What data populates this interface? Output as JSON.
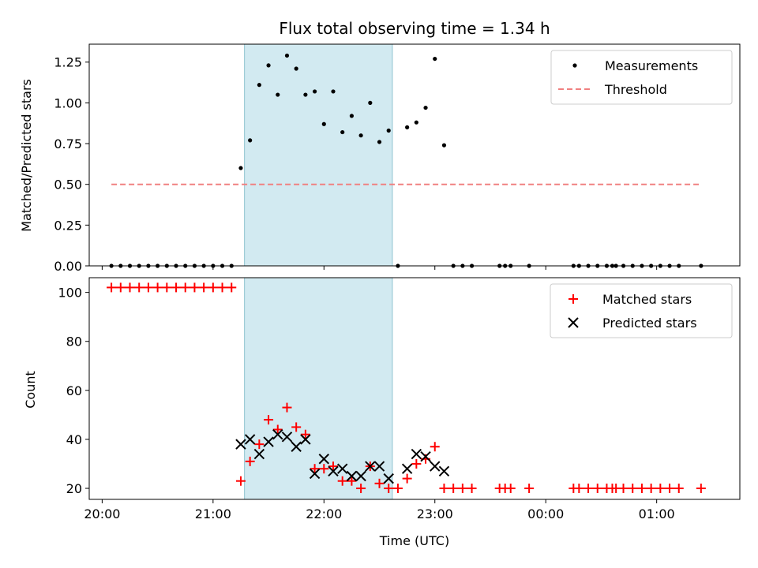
{
  "chart_data": [
    {
      "type": "scatter",
      "title": "Flux total observing time = 1.34 h",
      "xlabel": "",
      "ylabel": "Matched/Predicted stars",
      "ylim": [
        0,
        1.36
      ],
      "xlim": [
        "19:53",
        "01:45"
      ],
      "yticks": [
        "0.00",
        "0.25",
        "0.50",
        "0.75",
        "1.00",
        "1.25"
      ],
      "grid": false,
      "legend_position": "top-right",
      "shaded_region": {
        "start": "21:17",
        "end": "22:37"
      },
      "series": [
        {
          "name": "Measurements",
          "marker": "dot",
          "color": "#000000",
          "points": [
            [
              "20:05",
              0
            ],
            [
              "20:10",
              0
            ],
            [
              "20:15",
              0
            ],
            [
              "20:20",
              0
            ],
            [
              "20:25",
              0
            ],
            [
              "20:30",
              0
            ],
            [
              "20:35",
              0
            ],
            [
              "20:40",
              0
            ],
            [
              "20:45",
              0
            ],
            [
              "20:50",
              0
            ],
            [
              "20:55",
              0
            ],
            [
              "21:00",
              0
            ],
            [
              "21:05",
              0
            ],
            [
              "21:10",
              0
            ],
            [
              "21:15",
              0.6
            ],
            [
              "21:20",
              0.77
            ],
            [
              "21:25",
              1.11
            ],
            [
              "21:30",
              1.23
            ],
            [
              "21:35",
              1.05
            ],
            [
              "21:40",
              1.29
            ],
            [
              "21:45",
              1.21
            ],
            [
              "21:50",
              1.05
            ],
            [
              "21:55",
              1.07
            ],
            [
              "22:00",
              0.87
            ],
            [
              "22:05",
              1.07
            ],
            [
              "22:10",
              0.82
            ],
            [
              "22:15",
              0.92
            ],
            [
              "22:20",
              0.8
            ],
            [
              "22:25",
              1.0
            ],
            [
              "22:30",
              0.76
            ],
            [
              "22:35",
              0.83
            ],
            [
              "22:40",
              0
            ],
            [
              "22:45",
              0.85
            ],
            [
              "22:50",
              0.88
            ],
            [
              "22:55",
              0.97
            ],
            [
              "23:00",
              1.27
            ],
            [
              "23:05",
              0.74
            ],
            [
              "23:10",
              0
            ],
            [
              "23:15",
              0
            ],
            [
              "23:20",
              0
            ],
            [
              "23:35",
              0
            ],
            [
              "23:38",
              0
            ],
            [
              "23:41",
              0
            ],
            [
              "23:51",
              0
            ],
            [
              "00:15",
              0
            ],
            [
              "00:18",
              0
            ],
            [
              "00:23",
              0
            ],
            [
              "00:28",
              0
            ],
            [
              "00:33",
              0
            ],
            [
              "00:36",
              0
            ],
            [
              "00:38",
              0
            ],
            [
              "00:42",
              0
            ],
            [
              "00:47",
              0
            ],
            [
              "00:52",
              0
            ],
            [
              "00:57",
              0
            ],
            [
              "01:02",
              0
            ],
            [
              "01:07",
              0
            ],
            [
              "01:12",
              0
            ],
            [
              "01:24",
              0
            ]
          ]
        },
        {
          "name": "Threshold",
          "marker": "dashed-line",
          "color": "#f08080",
          "points": [
            [
              "20:05",
              0.5
            ],
            [
              "01:24",
              0.5
            ]
          ]
        }
      ]
    },
    {
      "type": "scatter",
      "title": "",
      "xlabel": "Time (UTC)",
      "ylabel": "Count",
      "ylim": [
        15.5,
        106
      ],
      "xlim": [
        "19:53",
        "01:45"
      ],
      "yticks": [
        "20",
        "40",
        "60",
        "80",
        "100"
      ],
      "xticks": [
        "20:00",
        "21:00",
        "22:00",
        "23:00",
        "00:00",
        "01:00"
      ],
      "grid": false,
      "legend_position": "top-right",
      "shaded_region": {
        "start": "21:17",
        "end": "22:37"
      },
      "series": [
        {
          "name": "Matched stars",
          "marker": "plus",
          "color": "#ff0000",
          "points": [
            [
              "20:05",
              102
            ],
            [
              "20:10",
              102
            ],
            [
              "20:15",
              102
            ],
            [
              "20:20",
              102
            ],
            [
              "20:25",
              102
            ],
            [
              "20:30",
              102
            ],
            [
              "20:35",
              102
            ],
            [
              "20:40",
              102
            ],
            [
              "20:45",
              102
            ],
            [
              "20:50",
              102
            ],
            [
              "20:55",
              102
            ],
            [
              "21:00",
              102
            ],
            [
              "21:05",
              102
            ],
            [
              "21:10",
              102
            ],
            [
              "21:15",
              23
            ],
            [
              "21:20",
              31
            ],
            [
              "21:25",
              38
            ],
            [
              "21:30",
              48
            ],
            [
              "21:35",
              44
            ],
            [
              "21:40",
              53
            ],
            [
              "21:45",
              45
            ],
            [
              "21:50",
              42
            ],
            [
              "21:55",
              28
            ],
            [
              "22:00",
              28
            ],
            [
              "22:05",
              29
            ],
            [
              "22:10",
              23
            ],
            [
              "22:15",
              23
            ],
            [
              "22:20",
              20
            ],
            [
              "22:25",
              29
            ],
            [
              "22:30",
              22
            ],
            [
              "22:35",
              20
            ],
            [
              "22:40",
              20
            ],
            [
              "22:45",
              24
            ],
            [
              "22:50",
              30
            ],
            [
              "22:55",
              32
            ],
            [
              "23:00",
              37
            ],
            [
              "23:05",
              20
            ],
            [
              "23:10",
              20
            ],
            [
              "23:15",
              20
            ],
            [
              "23:20",
              20
            ],
            [
              "23:35",
              20
            ],
            [
              "23:38",
              20
            ],
            [
              "23:41",
              20
            ],
            [
              "23:51",
              20
            ],
            [
              "00:15",
              20
            ],
            [
              "00:18",
              20
            ],
            [
              "00:23",
              20
            ],
            [
              "00:28",
              20
            ],
            [
              "00:33",
              20
            ],
            [
              "00:36",
              20
            ],
            [
              "00:38",
              20
            ],
            [
              "00:42",
              20
            ],
            [
              "00:47",
              20
            ],
            [
              "00:52",
              20
            ],
            [
              "00:57",
              20
            ],
            [
              "01:02",
              20
            ],
            [
              "01:07",
              20
            ],
            [
              "01:12",
              20
            ],
            [
              "01:24",
              20
            ]
          ]
        },
        {
          "name": "Predicted stars",
          "marker": "x",
          "color": "#000000",
          "points": [
            [
              "21:15",
              38
            ],
            [
              "21:20",
              40
            ],
            [
              "21:25",
              34
            ],
            [
              "21:30",
              39
            ],
            [
              "21:35",
              42
            ],
            [
              "21:40",
              41
            ],
            [
              "21:45",
              37
            ],
            [
              "21:50",
              40
            ],
            [
              "21:55",
              26
            ],
            [
              "22:00",
              32
            ],
            [
              "22:05",
              27
            ],
            [
              "22:10",
              28
            ],
            [
              "22:15",
              25
            ],
            [
              "22:20",
              25
            ],
            [
              "22:25",
              29
            ],
            [
              "22:30",
              29
            ],
            [
              "22:35",
              24
            ],
            [
              "22:45",
              28
            ],
            [
              "22:50",
              34
            ],
            [
              "22:55",
              33
            ],
            [
              "23:00",
              29
            ],
            [
              "23:05",
              27
            ]
          ]
        }
      ]
    }
  ]
}
